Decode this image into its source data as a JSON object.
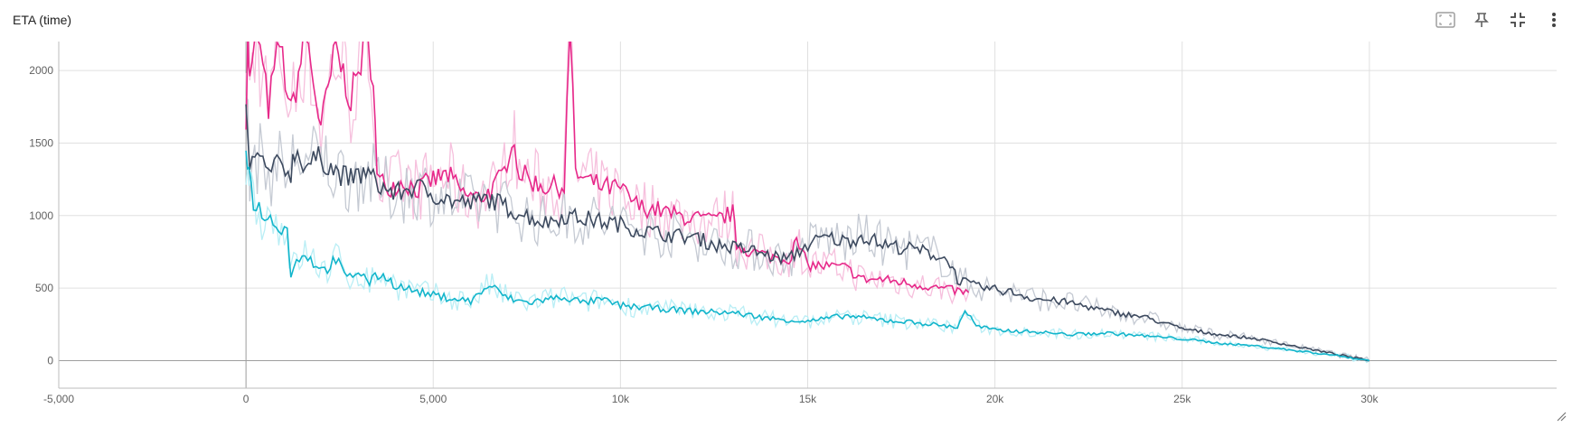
{
  "card": {
    "title": "ETA (time)",
    "toolbar": [
      {
        "name": "fit-domain-icon",
        "label": "Fit domain to data"
      },
      {
        "name": "pin-icon",
        "label": "Pin card"
      },
      {
        "name": "collapse-icon",
        "label": "Collapse"
      },
      {
        "name": "more-vert-icon",
        "label": "More"
      }
    ]
  },
  "chart_data": {
    "type": "line",
    "xlabel": "",
    "ylabel": "",
    "xlim": [
      -5000,
      35000
    ],
    "ylim": [
      -190,
      2200
    ],
    "x_ticks": [
      {
        "value": -5000,
        "label": "-5,000"
      },
      {
        "value": 0,
        "label": "0"
      },
      {
        "value": 5000,
        "label": "5,000"
      },
      {
        "value": 10000,
        "label": "10k"
      },
      {
        "value": 15000,
        "label": "15k"
      },
      {
        "value": 20000,
        "label": "20k"
      },
      {
        "value": 25000,
        "label": "25k"
      },
      {
        "value": 30000,
        "label": "30k"
      }
    ],
    "y_ticks": [
      {
        "value": 0,
        "label": "0"
      },
      {
        "value": 500,
        "label": "500"
      },
      {
        "value": 1000,
        "label": "1000"
      },
      {
        "value": 1500,
        "label": "1500"
      },
      {
        "value": 2000,
        "label": "2000"
      }
    ],
    "grid": true,
    "series": [
      {
        "color": "#e7298a",
        "raw_color": "#f6c0dd",
        "x": [
          0,
          50,
          100,
          300,
          600,
          900,
          1200,
          1600,
          2000,
          2400,
          2800,
          3200,
          3400,
          3500,
          3800,
          4200,
          4600,
          5000,
          5400,
          5800,
          6200,
          6600,
          6900,
          7100,
          7300,
          7600,
          8000,
          8300,
          8500,
          8650,
          8800,
          9000,
          9500,
          10000,
          10500,
          11000,
          11500,
          12000,
          12500,
          13000,
          13100,
          13500,
          14000,
          14500,
          14700,
          15000,
          15500,
          16000,
          16500,
          17000,
          17500,
          18000,
          18500,
          19000,
          19300
        ],
        "y": [
          1700,
          2250,
          1900,
          2250,
          1750,
          2200,
          1700,
          2250,
          1600,
          2150,
          1800,
          2200,
          2000,
          1250,
          1200,
          1230,
          1180,
          1250,
          1280,
          1150,
          1120,
          1180,
          1300,
          1550,
          1300,
          1240,
          1200,
          1200,
          1200,
          2300,
          1300,
          1250,
          1200,
          1180,
          1060,
          1040,
          1000,
          980,
          960,
          1020,
          800,
          750,
          720,
          700,
          820,
          660,
          650,
          640,
          560,
          560,
          540,
          520,
          500,
          480,
          470
        ]
      },
      {
        "color": "#3d4a5f",
        "raw_color": "#c5cad3",
        "x": [
          0,
          100,
          300,
          600,
          900,
          1200,
          1300,
          1600,
          2000,
          2400,
          2800,
          3200,
          3600,
          4000,
          4500,
          5000,
          5500,
          6000,
          6500,
          7000,
          7500,
          8000,
          8500,
          9000,
          9500,
          10000,
          10500,
          11000,
          11500,
          12000,
          12500,
          13000,
          13500,
          14000,
          14500,
          15000,
          15500,
          16000,
          16500,
          17000,
          17500,
          18000,
          18500,
          18800,
          19000,
          19500,
          20000,
          20500,
          21000,
          22000,
          23000,
          24000,
          25000,
          26000,
          27000,
          28000,
          29000,
          30000
        ],
        "y": [
          1700,
          1350,
          1400,
          1300,
          1350,
          1300,
          1450,
          1350,
          1400,
          1300,
          1250,
          1300,
          1200,
          1150,
          1200,
          1150,
          1100,
          1080,
          1120,
          1050,
          1000,
          950,
          1000,
          980,
          960,
          940,
          900,
          880,
          860,
          850,
          800,
          780,
          760,
          720,
          700,
          800,
          850,
          820,
          860,
          800,
          780,
          760,
          720,
          680,
          560,
          510,
          490,
          470,
          430,
          400,
          340,
          300,
          220,
          180,
          150,
          100,
          50,
          0
        ]
      },
      {
        "color": "#12b5cb",
        "raw_color": "#b9eef5",
        "x": [
          0,
          80,
          200,
          500,
          800,
          1100,
          1200,
          1500,
          1800,
          2100,
          2400,
          2700,
          3000,
          3300,
          3600,
          4000,
          4500,
          5000,
          5500,
          6000,
          6500,
          7000,
          7500,
          8000,
          8500,
          9000,
          9500,
          10000,
          11000,
          12000,
          13000,
          14000,
          15000,
          16000,
          17000,
          18000,
          19000,
          19200,
          19500,
          20000,
          21000,
          22000,
          23000,
          24000,
          25000,
          26000,
          27000,
          28000,
          29000,
          30000
        ],
        "y": [
          1500,
          1300,
          1100,
          1000,
          950,
          900,
          600,
          750,
          680,
          620,
          700,
          560,
          620,
          540,
          600,
          520,
          480,
          450,
          430,
          410,
          520,
          430,
          400,
          420,
          440,
          400,
          420,
          380,
          360,
          340,
          330,
          290,
          270,
          310,
          280,
          260,
          230,
          350,
          240,
          210,
          200,
          180,
          190,
          170,
          150,
          120,
          100,
          70,
          40,
          0
        ]
      }
    ]
  }
}
